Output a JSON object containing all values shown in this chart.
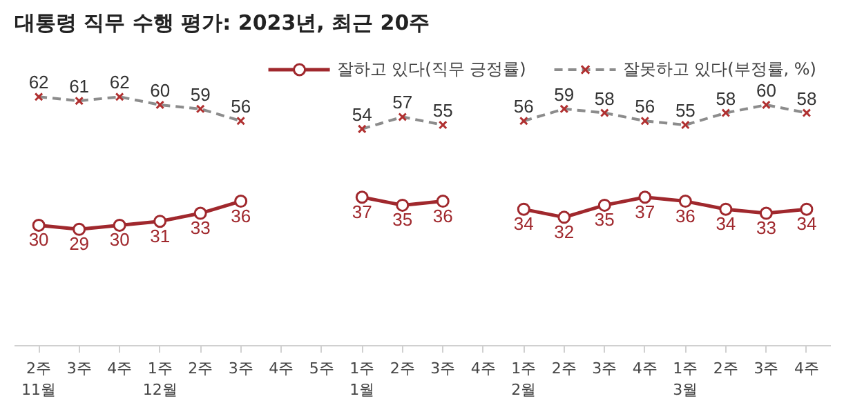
{
  "chart_data": {
    "type": "line",
    "title": "대통령 직무 수행 평가: 2023년, 최근 20주",
    "categories": [
      "2주\n11월",
      "3주",
      "4주",
      "1주\n12월",
      "2주",
      "3주",
      "4주",
      "5주",
      "1주\n1월",
      "2주",
      "3주",
      "4주",
      "1주\n2월",
      "2주",
      "3주",
      "4주",
      "1주\n3월",
      "2주",
      "3주",
      "4주"
    ],
    "series": [
      {
        "name": "잘하고 있다(직무 긍정률)",
        "color": "#a0282d",
        "marker": "circle",
        "line_style": "solid",
        "values": [
          30,
          29,
          30,
          31,
          33,
          36,
          null,
          null,
          37,
          35,
          36,
          null,
          34,
          32,
          35,
          37,
          36,
          34,
          33,
          34
        ]
      },
      {
        "name": "잘못하고 있다(부정률, %)",
        "color": "#8c8c8c",
        "marker": "cross",
        "line_style": "dashed",
        "values": [
          62,
          61,
          62,
          60,
          59,
          56,
          null,
          null,
          54,
          57,
          55,
          null,
          56,
          59,
          58,
          56,
          55,
          58,
          60,
          58
        ]
      }
    ],
    "data_labels": true,
    "legend": "top right",
    "grid": false
  }
}
